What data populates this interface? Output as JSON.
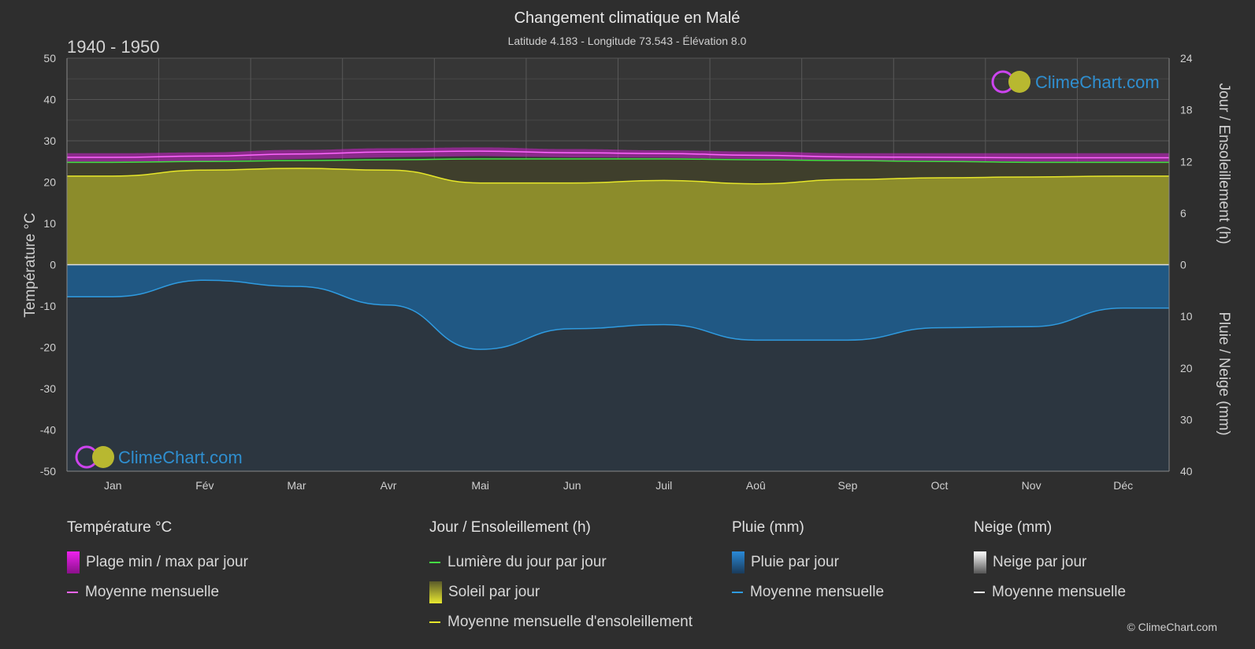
{
  "header": {
    "title": "Changement climatique en Malé",
    "subtitle": "Latitude 4.183 - Longitude 73.543 - Élévation 8.0",
    "period": "1940 - 1950"
  },
  "logo_text": "ClimeChart.com",
  "copyright": "© ClimeChart.com",
  "colors": {
    "background": "#2e2e2e",
    "temp_band": "#d020d0",
    "temp_mean": "#ff66ff",
    "daylight": "#44dd44",
    "sunshine_fill": "#9a9a2c",
    "sunshine_mean": "#e6e62a",
    "rain_fill": "#1f5c8c",
    "rain_mean": "#2f9be0",
    "snow_mean": "#ffffff"
  },
  "chart_data": {
    "type": "line",
    "months": [
      "Jan",
      "Fév",
      "Mar",
      "Avr",
      "Mai",
      "Jun",
      "Juil",
      "Aoû",
      "Sep",
      "Oct",
      "Nov",
      "Déc"
    ],
    "axes": {
      "left": {
        "label": "Température °C",
        "min": -50,
        "max": 50,
        "ticks": [
          50,
          40,
          30,
          20,
          10,
          0,
          -10,
          -20,
          -30,
          -40,
          -50
        ]
      },
      "right_top": {
        "label": "Jour / Ensoleillement (h)",
        "min": 0,
        "max": 24,
        "ticks": [
          24,
          18,
          12,
          6,
          0
        ]
      },
      "right_bottom": {
        "label": "Pluie / Neige (mm)",
        "min": 0,
        "max": 40,
        "ticks": [
          0,
          10,
          20,
          30,
          40
        ]
      }
    },
    "grid": true,
    "series": [
      {
        "name": "Plage min / max par jour",
        "kind": "band",
        "axis": "temperature",
        "min": [
          25.0,
          25.1,
          25.6,
          26.0,
          26.3,
          26.0,
          25.9,
          25.6,
          25.3,
          25.2,
          25.0,
          25.0
        ],
        "max": [
          27.0,
          27.2,
          27.8,
          28.2,
          28.4,
          28.0,
          27.7,
          27.4,
          27.0,
          27.0,
          27.0,
          27.0
        ]
      },
      {
        "name": "Moyenne mensuelle",
        "kind": "line",
        "axis": "temperature",
        "values": [
          26.0,
          26.3,
          26.8,
          27.3,
          27.5,
          27.1,
          26.9,
          26.5,
          26.1,
          26.0,
          25.9,
          25.9
        ]
      },
      {
        "name": "Lumière du jour par jour",
        "kind": "line",
        "axis": "hours",
        "values": [
          11.9,
          12.0,
          12.1,
          12.2,
          12.3,
          12.3,
          12.3,
          12.2,
          12.1,
          12.0,
          11.9,
          11.9
        ]
      },
      {
        "name": "Soleil par jour",
        "kind": "area",
        "axis": "hours",
        "values": [
          10.3,
          11.0,
          11.2,
          11.0,
          9.5,
          9.5,
          9.8,
          9.4,
          9.9,
          10.1,
          10.2,
          10.3
        ]
      },
      {
        "name": "Moyenne mensuelle d'ensoleillement",
        "kind": "line",
        "axis": "hours",
        "values": [
          10.3,
          11.0,
          11.2,
          11.0,
          9.5,
          9.5,
          9.8,
          9.4,
          9.9,
          10.1,
          10.2,
          10.3
        ]
      },
      {
        "name": "Pluie par jour",
        "kind": "area",
        "axis": "precip",
        "values": [
          6.2,
          3.0,
          4.2,
          7.8,
          16.4,
          12.4,
          11.6,
          14.6,
          14.6,
          12.2,
          12.0,
          8.4
        ]
      },
      {
        "name": "Moyenne mensuelle",
        "kind": "line",
        "axis": "precip",
        "values": [
          6.2,
          3.0,
          4.2,
          7.8,
          16.4,
          12.4,
          11.6,
          14.6,
          14.6,
          12.2,
          12.0,
          8.4
        ]
      },
      {
        "name": "Neige par jour",
        "kind": "area",
        "axis": "precip",
        "values": [
          0,
          0,
          0,
          0,
          0,
          0,
          0,
          0,
          0,
          0,
          0,
          0
        ]
      },
      {
        "name": "Moyenne mensuelle",
        "kind": "line",
        "axis": "precip",
        "values": [
          0,
          0,
          0,
          0,
          0,
          0,
          0,
          0,
          0,
          0,
          0,
          0
        ]
      }
    ]
  },
  "legend": {
    "temperature": {
      "title": "Température °C",
      "items": [
        "Plage min / max par jour",
        "Moyenne mensuelle"
      ]
    },
    "sun": {
      "title": "Jour / Ensoleillement (h)",
      "items": [
        "Lumière du jour par jour",
        "Soleil par jour",
        "Moyenne mensuelle d'ensoleillement"
      ]
    },
    "rain": {
      "title": "Pluie (mm)",
      "items": [
        "Pluie par jour",
        "Moyenne mensuelle"
      ]
    },
    "snow": {
      "title": "Neige (mm)",
      "items": [
        "Neige par jour",
        "Moyenne mensuelle"
      ]
    }
  }
}
